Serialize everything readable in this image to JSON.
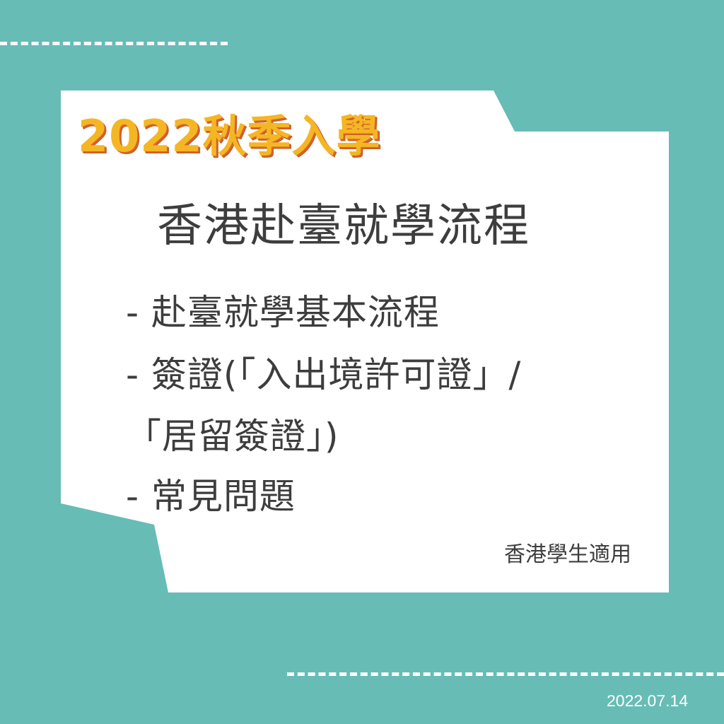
{
  "heading": "2022秋季入學",
  "title": "香港赴臺就學流程",
  "items": [
    "- 赴臺就學基本流程",
    "- 簽證(「入出境許可證」/",
    "「居留簽證」)",
    "- 常見問題"
  ],
  "note": "香港學生適用",
  "date": "2022.07.14",
  "colors": {
    "background": "#67bcb6",
    "card": "#ffffff",
    "heading_fill": "#f5b623",
    "heading_shadow": "#d1652d",
    "text": "#3d3d3d"
  }
}
